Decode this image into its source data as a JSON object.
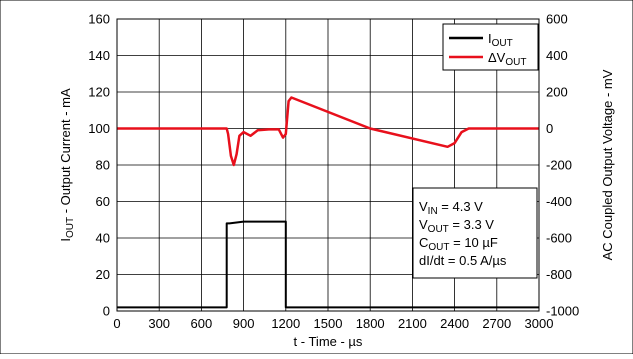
{
  "chart_data": {
    "type": "line",
    "xlabel": "t - Time - µs",
    "ylabel_left": {
      "main": "I",
      "sub": "OUT",
      "rest": " - Output Current - mA"
    },
    "ylabel_right": "AC Coupled Output Voltage - mV",
    "xlim": [
      0,
      3000
    ],
    "ylim_left": [
      0,
      160
    ],
    "ylim_right": [
      -1000,
      600
    ],
    "x_ticks": [
      "0",
      "300",
      "600",
      "900",
      "1200",
      "1500",
      "1800",
      "2100",
      "2400",
      "2700",
      "3000"
    ],
    "y_left_ticks": [
      "0",
      "20",
      "40",
      "60",
      "80",
      "100",
      "120",
      "140",
      "160"
    ],
    "y_right_ticks": [
      "-1000",
      "-800",
      "-600",
      "-400",
      "-200",
      "0",
      "200",
      "400",
      "600"
    ],
    "grid": true,
    "legend_position": "top-right",
    "series": [
      {
        "name_main": "I",
        "name_sub": "OUT",
        "axis": "left",
        "color": "#000000",
        "x": [
          0,
          780,
          780,
          800,
          900,
          1000,
          1100,
          1200,
          1200,
          3000
        ],
        "y": [
          2,
          2,
          48,
          48,
          49,
          49,
          49,
          49,
          2,
          2
        ]
      },
      {
        "name_main": "ΔV",
        "name_sub": "OUT",
        "axis": "right",
        "color": "#e8101c",
        "x": [
          0,
          780,
          790,
          810,
          830,
          850,
          870,
          900,
          950,
          1000,
          1080,
          1150,
          1180,
          1200,
          1220,
          1240,
          1800,
          2350,
          2400,
          2450,
          2500,
          3000
        ],
        "y": [
          0,
          0,
          -30,
          -150,
          -200,
          -140,
          -40,
          -20,
          -40,
          -10,
          -5,
          -5,
          -50,
          -30,
          150,
          170,
          0,
          -100,
          -80,
          -20,
          0,
          0
        ]
      }
    ],
    "annotations": [
      {
        "main": "V",
        "sub": "IN",
        "rest": " = 4.3 V"
      },
      {
        "main": "V",
        "sub": "OUT",
        "rest": " = 3.3 V"
      },
      {
        "main": "C",
        "sub": "OUT",
        "rest": " = 10 µF"
      },
      {
        "main": "dI/dt = 0.5 A/µs",
        "sub": "",
        "rest": ""
      }
    ]
  }
}
